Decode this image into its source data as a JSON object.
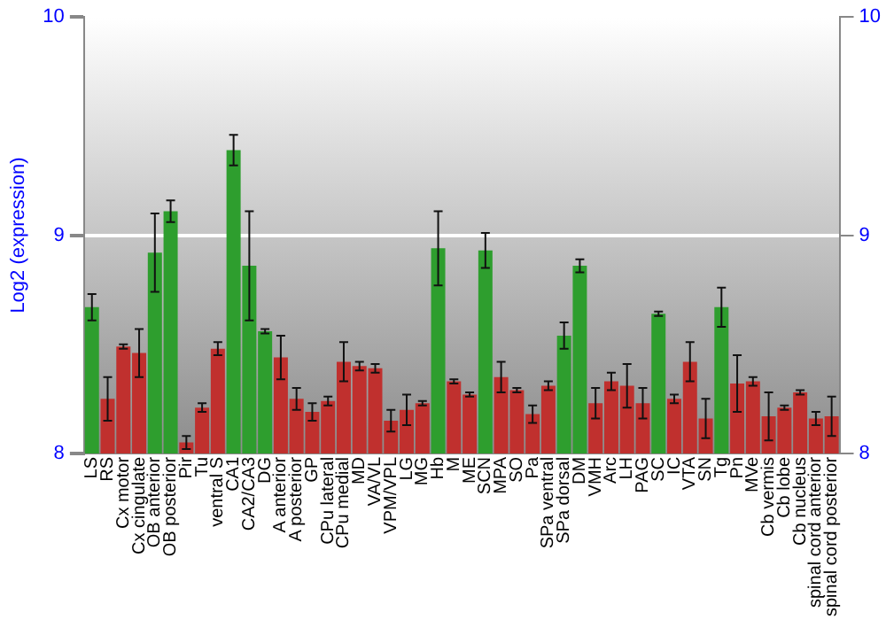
{
  "chart_data": {
    "type": "bar",
    "ylabel": "Log2 (expression)",
    "categories": [
      "LS",
      "RS",
      "Cx motor",
      "Cx cingulate",
      "OB anterior",
      "OB posterior",
      "Pir",
      "Tu",
      "ventral S",
      "CA1",
      "CA2/CA3",
      "DG",
      "A anterior",
      "A posterior",
      "GP",
      "CPu lateral",
      "CPu medial",
      "MD",
      "VA/VL",
      "VPM/VPL",
      "LG",
      "MG",
      "Hb",
      "M",
      "ME",
      "SCN",
      "MPA",
      "SO",
      "Pa",
      "SPa ventral",
      "SPa dorsal",
      "DM",
      "VMH",
      "Arc",
      "LH",
      "PAG",
      "SC",
      "IC",
      "VTA",
      "SN",
      "Tg",
      "Pn",
      "MVe",
      "Cb vermis",
      "Cb lobe",
      "Cb nucleus",
      "spinal cord anterior",
      "spinal cord posterior"
    ],
    "values": [
      8.67,
      8.25,
      8.49,
      8.46,
      8.92,
      9.11,
      8.05,
      8.21,
      8.48,
      9.39,
      8.86,
      8.56,
      8.44,
      8.25,
      8.19,
      8.24,
      8.42,
      8.4,
      8.39,
      8.15,
      8.2,
      8.23,
      8.94,
      8.33,
      8.27,
      8.93,
      8.35,
      8.29,
      8.18,
      8.31,
      8.54,
      8.86,
      8.23,
      8.33,
      8.31,
      8.23,
      8.64,
      8.25,
      8.42,
      8.16,
      8.67,
      8.32,
      8.33,
      8.17,
      8.21,
      8.28,
      8.16,
      8.17
    ],
    "errors": [
      0.06,
      0.1,
      0.01,
      0.11,
      0.18,
      0.05,
      0.03,
      0.02,
      0.03,
      0.07,
      0.25,
      0.01,
      0.1,
      0.05,
      0.04,
      0.02,
      0.09,
      0.02,
      0.02,
      0.05,
      0.07,
      0.01,
      0.17,
      0.01,
      0.01,
      0.08,
      0.07,
      0.01,
      0.04,
      0.02,
      0.06,
      0.03,
      0.07,
      0.04,
      0.1,
      0.07,
      0.01,
      0.02,
      0.09,
      0.09,
      0.09,
      0.13,
      0.02,
      0.11,
      0.01,
      0.01,
      0.03,
      0.09
    ],
    "colors": [
      "#2e9e2e",
      "#c0302e",
      "#c0302e",
      "#c0302e",
      "#2e9e2e",
      "#2e9e2e",
      "#c0302e",
      "#c0302e",
      "#c0302e",
      "#2e9e2e",
      "#2e9e2e",
      "#2e9e2e",
      "#c0302e",
      "#c0302e",
      "#c0302e",
      "#c0302e",
      "#c0302e",
      "#c0302e",
      "#c0302e",
      "#c0302e",
      "#c0302e",
      "#c0302e",
      "#2e9e2e",
      "#c0302e",
      "#c0302e",
      "#2e9e2e",
      "#c0302e",
      "#c0302e",
      "#c0302e",
      "#c0302e",
      "#2e9e2e",
      "#2e9e2e",
      "#c0302e",
      "#c0302e",
      "#c0302e",
      "#c0302e",
      "#2e9e2e",
      "#c0302e",
      "#c0302e",
      "#c0302e",
      "#2e9e2e",
      "#c0302e",
      "#c0302e",
      "#c0302e",
      "#c0302e",
      "#c0302e",
      "#c0302e",
      "#c0302e"
    ],
    "ylim": [
      8,
      10
    ],
    "yticks": [
      8,
      9,
      10
    ],
    "y2lim": [
      8,
      10
    ],
    "y2ticks": [
      8,
      9,
      10
    ],
    "grid": "y",
    "legend": false
  }
}
